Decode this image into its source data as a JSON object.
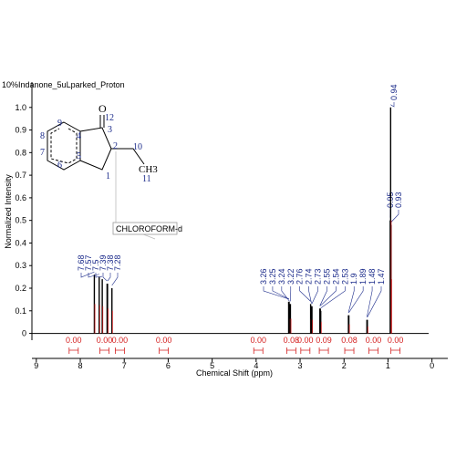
{
  "chart_data": {
    "type": "nmr",
    "title": "10%Indanone_5uLparked_Proton",
    "x_label": "Chemical Shift (ppm)",
    "y_label": "Normalized Intensity",
    "annotation": "CHLOROFORM-d",
    "xlim": [
      9.1,
      -0.36
    ],
    "xticks": [
      9,
      8,
      7,
      6,
      5,
      4,
      3,
      2,
      1,
      0
    ],
    "ylim": [
      -0.03,
      1.1
    ],
    "yticks": [
      0,
      0.1,
      0.2,
      0.3,
      0.4,
      0.5,
      0.6,
      0.7,
      0.8,
      0.9,
      {
        "value": 1,
        "label": "1.0"
      }
    ],
    "color": "#000000",
    "integral_color": "#d42020",
    "peaks": {
      "x": [
        7.68,
        7.57,
        7.5,
        7.39,
        7.38,
        7.28,
        3.26,
        3.25,
        3.24,
        3.22,
        2.76,
        2.74,
        2.73,
        2.55,
        2.54,
        2.53,
        1.9,
        1.89,
        1.48,
        1.47,
        0.95,
        0.93,
        0.94
      ],
      "values": [
        0.26,
        0.25,
        0.24,
        0.22,
        0.22,
        0.2,
        0.14,
        0.14,
        0.13,
        0.13,
        0.13,
        0.12,
        0.12,
        0.11,
        0.11,
        0.1,
        0.08,
        0.08,
        0.06,
        0.06,
        0.5,
        0.48,
        1.0
      ]
    },
    "integrals": {
      "x": [
        8.15,
        7.45,
        7.1,
        6.1,
        3.95,
        3.2,
        2.88,
        2.46,
        1.88,
        1.33,
        0.83
      ],
      "values": [
        0,
        0,
        0,
        0,
        0,
        0.08,
        0,
        0.09,
        0.08,
        0,
        0
      ],
      "value_labels": [
        "0.00",
        "0.00",
        "0.00",
        "0.00",
        "0.00",
        "0.08",
        "0.00",
        "0.09",
        "0.08",
        "0.00",
        "0.00"
      ]
    }
  },
  "structure": {
    "atoms": [
      "O",
      "12",
      "3",
      "2",
      "10",
      "9",
      "4",
      "8",
      "7",
      "6",
      "5",
      "1",
      "CH3",
      "11"
    ]
  }
}
